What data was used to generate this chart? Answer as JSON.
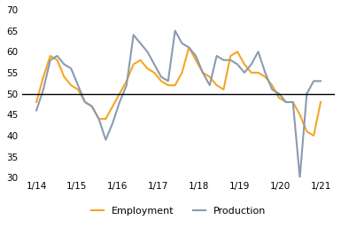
{
  "x_labels": [
    "1/14",
    "1/15",
    "1/16",
    "1/17",
    "1/18",
    "1/19",
    "1/20",
    "1/21"
  ],
  "employment": [
    48,
    54,
    59,
    58,
    54,
    52,
    51,
    48,
    47,
    44,
    44,
    47,
    50,
    53,
    57,
    58,
    56,
    55,
    53,
    52,
    52,
    55,
    61,
    58,
    55,
    54,
    52,
    51,
    59,
    60,
    57,
    55,
    55,
    54,
    52,
    49,
    48,
    48,
    45,
    41,
    40,
    48
  ],
  "production": [
    46,
    51,
    58,
    59,
    57,
    56,
    52,
    48,
    47,
    44,
    39,
    43,
    48,
    52,
    64,
    62,
    60,
    57,
    54,
    53,
    65,
    62,
    61,
    59,
    55,
    52,
    59,
    58,
    58,
    57,
    55,
    57,
    60,
    55,
    51,
    50,
    48,
    48,
    30,
    50,
    53,
    53
  ],
  "employment_color": "#f5a623",
  "production_color": "#8a9bb0",
  "reference_line": 50,
  "ylim": [
    30,
    70
  ],
  "yticks": [
    30,
    35,
    40,
    45,
    50,
    55,
    60,
    65,
    70
  ],
  "background_color": "#ffffff",
  "legend_employment": "Employment",
  "legend_production": "Production"
}
